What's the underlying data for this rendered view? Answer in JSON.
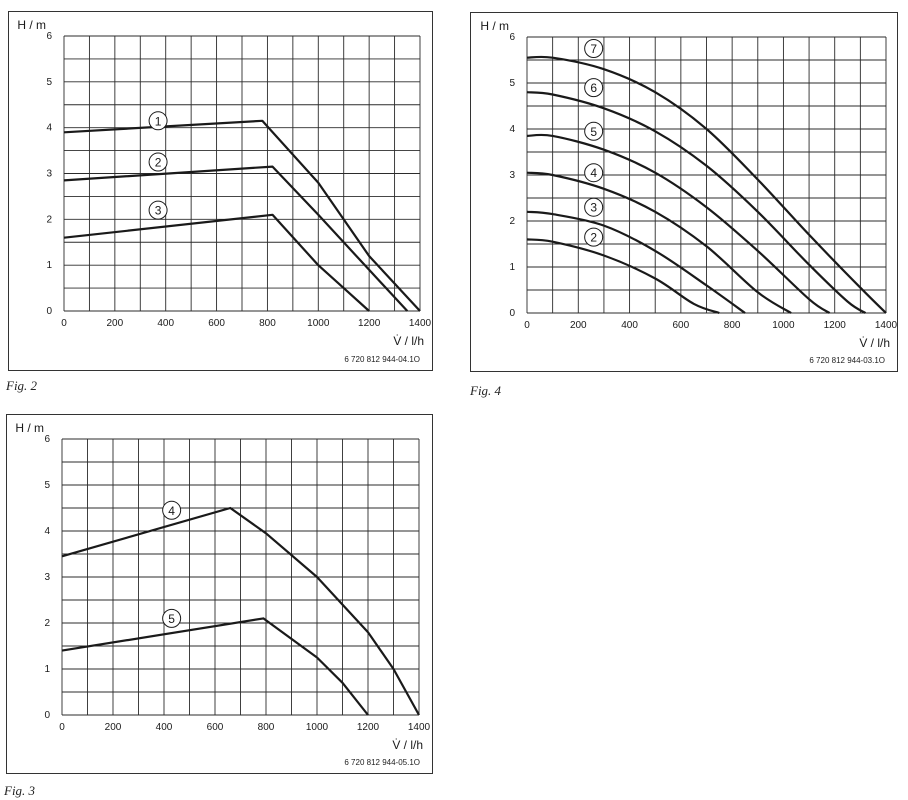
{
  "chart_data": [
    {
      "id": "fig2",
      "type": "line",
      "caption": "Fig. 2",
      "code": "6 720 812 944-04.1O",
      "xlabel": "V̇ / l/h",
      "ylabel": "H / m",
      "xlim": [
        0,
        1400
      ],
      "ylim": [
        0,
        6
      ],
      "x_ticks": [
        "0",
        "200",
        "400",
        "600",
        "800",
        "1000",
        "1200",
        "1400"
      ],
      "y_ticks": [
        "0",
        "1",
        "2",
        "3",
        "4",
        "5",
        "6"
      ],
      "grid": true,
      "series": [
        {
          "name": "1",
          "label_at": [
            370,
            4.15
          ],
          "points": [
            [
              0,
              3.9
            ],
            [
              780,
              4.15
            ],
            [
              1000,
              2.8
            ],
            [
              1200,
              1.2
            ],
            [
              1400,
              0
            ]
          ]
        },
        {
          "name": "2",
          "label_at": [
            370,
            3.25
          ],
          "points": [
            [
              0,
              2.85
            ],
            [
              820,
              3.15
            ],
            [
              1000,
              2.1
            ],
            [
              1200,
              0.9
            ],
            [
              1350,
              0
            ]
          ]
        },
        {
          "name": "3",
          "label_at": [
            370,
            2.2
          ],
          "points": [
            [
              0,
              1.6
            ],
            [
              820,
              2.1
            ],
            [
              1000,
              1.0
            ],
            [
              1100,
              0.5
            ],
            [
              1200,
              0
            ]
          ]
        }
      ]
    },
    {
      "id": "fig4",
      "type": "line",
      "caption": "Fig. 4",
      "code": "6 720 812 944-03.1O",
      "xlabel": "V̇ / l/h",
      "ylabel": "H / m",
      "xlim": [
        0,
        1400
      ],
      "ylim": [
        0,
        6
      ],
      "x_ticks": [
        "0",
        "200",
        "400",
        "600",
        "800",
        "1000",
        "1200",
        "1400"
      ],
      "y_ticks": [
        "0",
        "1",
        "2",
        "3",
        "4",
        "5",
        "6"
      ],
      "grid": true,
      "series": [
        {
          "name": "7",
          "label_at": [
            260,
            5.75
          ],
          "points": [
            [
              0,
              5.55
            ],
            [
              100,
              5.55
            ],
            [
              300,
              5.3
            ],
            [
              500,
              4.8
            ],
            [
              700,
              4.0
            ],
            [
              900,
              2.9
            ],
            [
              1100,
              1.7
            ],
            [
              1300,
              0.55
            ],
            [
              1400,
              0
            ]
          ]
        },
        {
          "name": "6",
          "label_at": [
            260,
            4.9
          ],
          "points": [
            [
              0,
              4.8
            ],
            [
              100,
              4.75
            ],
            [
              300,
              4.45
            ],
            [
              500,
              3.95
            ],
            [
              700,
              3.2
            ],
            [
              900,
              2.2
            ],
            [
              1100,
              1.05
            ],
            [
              1250,
              0.25
            ],
            [
              1320,
              0
            ]
          ]
        },
        {
          "name": "5",
          "label_at": [
            260,
            3.95
          ],
          "points": [
            [
              0,
              3.85
            ],
            [
              100,
              3.85
            ],
            [
              300,
              3.55
            ],
            [
              500,
              3.05
            ],
            [
              700,
              2.3
            ],
            [
              900,
              1.35
            ],
            [
              1100,
              0.3
            ],
            [
              1180,
              0
            ]
          ]
        },
        {
          "name": "4",
          "label_at": [
            260,
            3.05
          ],
          "points": [
            [
              0,
              3.05
            ],
            [
              100,
              3.0
            ],
            [
              300,
              2.7
            ],
            [
              500,
              2.2
            ],
            [
              700,
              1.45
            ],
            [
              900,
              0.45
            ],
            [
              1030,
              0
            ]
          ]
        },
        {
          "name": "3",
          "label_at": [
            260,
            2.3
          ],
          "points": [
            [
              0,
              2.2
            ],
            [
              100,
              2.15
            ],
            [
              300,
              1.9
            ],
            [
              500,
              1.35
            ],
            [
              700,
              0.6
            ],
            [
              850,
              0
            ]
          ]
        },
        {
          "name": "2",
          "label_at": [
            260,
            1.65
          ],
          "points": [
            [
              0,
              1.6
            ],
            [
              100,
              1.55
            ],
            [
              300,
              1.25
            ],
            [
              500,
              0.75
            ],
            [
              650,
              0.2
            ],
            [
              750,
              0
            ]
          ]
        }
      ]
    },
    {
      "id": "fig3",
      "type": "line",
      "caption": "Fig. 3",
      "code": "6 720 812 944-05.1O",
      "xlabel": "V̇ / l/h",
      "ylabel": "H / m",
      "xlim": [
        0,
        1400
      ],
      "ylim": [
        0,
        6
      ],
      "x_ticks": [
        "0",
        "200",
        "400",
        "600",
        "800",
        "1000",
        "1200",
        "1400"
      ],
      "y_ticks": [
        "0",
        "1",
        "2",
        "3",
        "4",
        "5",
        "6"
      ],
      "grid": true,
      "series": [
        {
          "name": "4",
          "label_at": [
            430,
            4.45
          ],
          "points": [
            [
              0,
              3.45
            ],
            [
              660,
              4.5
            ],
            [
              800,
              3.95
            ],
            [
              1000,
              3.0
            ],
            [
              1200,
              1.8
            ],
            [
              1300,
              1.0
            ],
            [
              1400,
              0
            ]
          ]
        },
        {
          "name": "5",
          "label_at": [
            430,
            2.1
          ],
          "points": [
            [
              0,
              1.4
            ],
            [
              790,
              2.1
            ],
            [
              1000,
              1.25
            ],
            [
              1100,
              0.7
            ],
            [
              1200,
              0
            ]
          ]
        }
      ]
    }
  ]
}
